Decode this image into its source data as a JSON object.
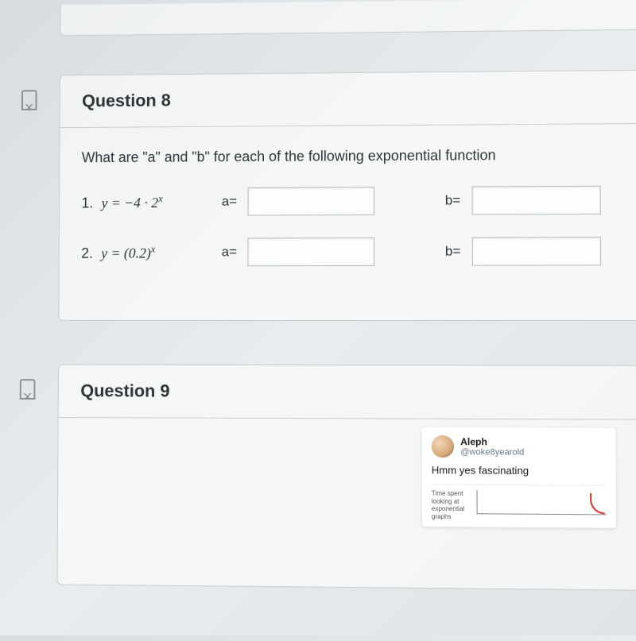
{
  "q8": {
    "title": "Question 8",
    "prompt": "What are \"a\" and \"b\" for each of the following exponential function",
    "rows": [
      {
        "num": "1.",
        "eqn_html": "y = −4 · 2",
        "sup": "x",
        "a_label": "a=",
        "b_label": "b=",
        "a_val": "",
        "b_val": ""
      },
      {
        "num": "2.",
        "eqn_html": "y = (0.2)",
        "sup": "x",
        "a_label": "a=",
        "b_label": "b=",
        "a_val": "",
        "b_val": ""
      }
    ]
  },
  "q9": {
    "title": "Question 9"
  },
  "tweet": {
    "name": "Aleph",
    "handle": "@woke8yearold",
    "text": "Hmm yes fascinating",
    "chart_ylabel": "Time spent looking at exponential graphs"
  }
}
